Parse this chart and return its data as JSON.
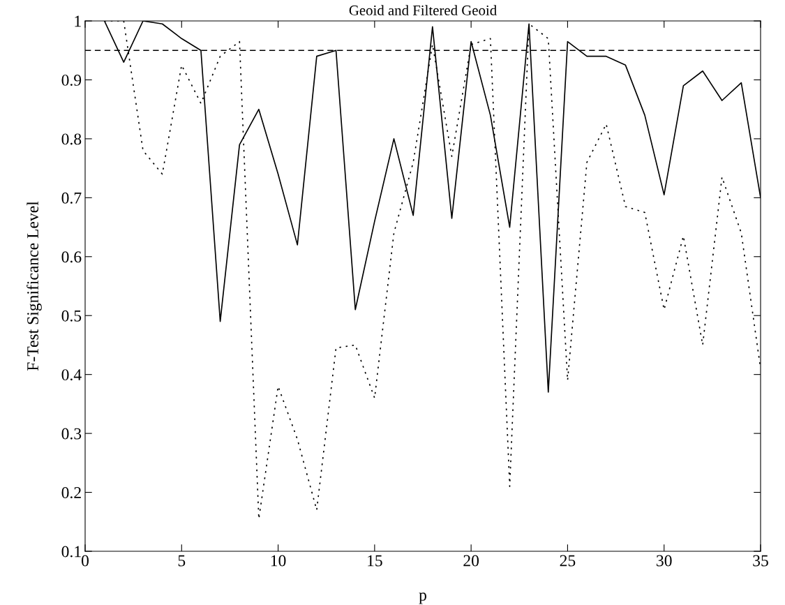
{
  "chart_data": {
    "type": "line",
    "title": "Geoid and Filtered Geoid",
    "xlabel": "p",
    "ylabel": "F-Test Significance Level",
    "x": [
      1,
      2,
      3,
      4,
      5,
      6,
      7,
      8,
      9,
      10,
      11,
      12,
      13,
      14,
      15,
      16,
      17,
      18,
      19,
      20,
      21,
      22,
      23,
      24,
      25,
      26,
      27,
      28,
      29,
      30,
      31,
      32,
      33,
      34,
      35
    ],
    "series": [
      {
        "color": "#000000",
        "line_style": "solid",
        "values": [
          1.0,
          0.93,
          1.0,
          0.995,
          0.97,
          0.95,
          0.49,
          0.79,
          0.85,
          0.74,
          0.62,
          0.94,
          0.95,
          0.51,
          0.66,
          0.8,
          0.67,
          0.99,
          0.665,
          0.965,
          0.84,
          0.65,
          0.995,
          0.37,
          0.965,
          0.94,
          0.94,
          0.925,
          0.84,
          0.705,
          0.89,
          0.915,
          0.865,
          0.895,
          0.7
        ]
      },
      {
        "color": "#000000",
        "line_style": "dotted",
        "values": [
          1.0,
          1.0,
          0.78,
          0.74,
          0.925,
          0.86,
          0.94,
          0.965,
          0.155,
          0.38,
          0.29,
          0.17,
          0.445,
          0.45,
          0.36,
          0.64,
          0.76,
          0.96,
          0.77,
          0.96,
          0.97,
          0.21,
          0.995,
          0.97,
          0.39,
          0.76,
          0.825,
          0.685,
          0.675,
          0.51,
          0.635,
          0.45,
          0.735,
          0.64,
          0.41
        ]
      }
    ],
    "ref_lines": [
      {
        "axis": "y",
        "value": 0.95,
        "color": "#000000",
        "line_style": "dashed"
      }
    ],
    "xlim": [
      0,
      35
    ],
    "xticks": [
      0,
      5,
      10,
      15,
      20,
      25,
      30,
      35
    ],
    "ylim": [
      0.1,
      1
    ],
    "yticks": [
      0.1,
      0.2,
      0.3,
      0.4,
      0.5,
      0.6,
      0.7,
      0.8,
      0.9,
      1
    ],
    "grid": false,
    "legend": false
  }
}
